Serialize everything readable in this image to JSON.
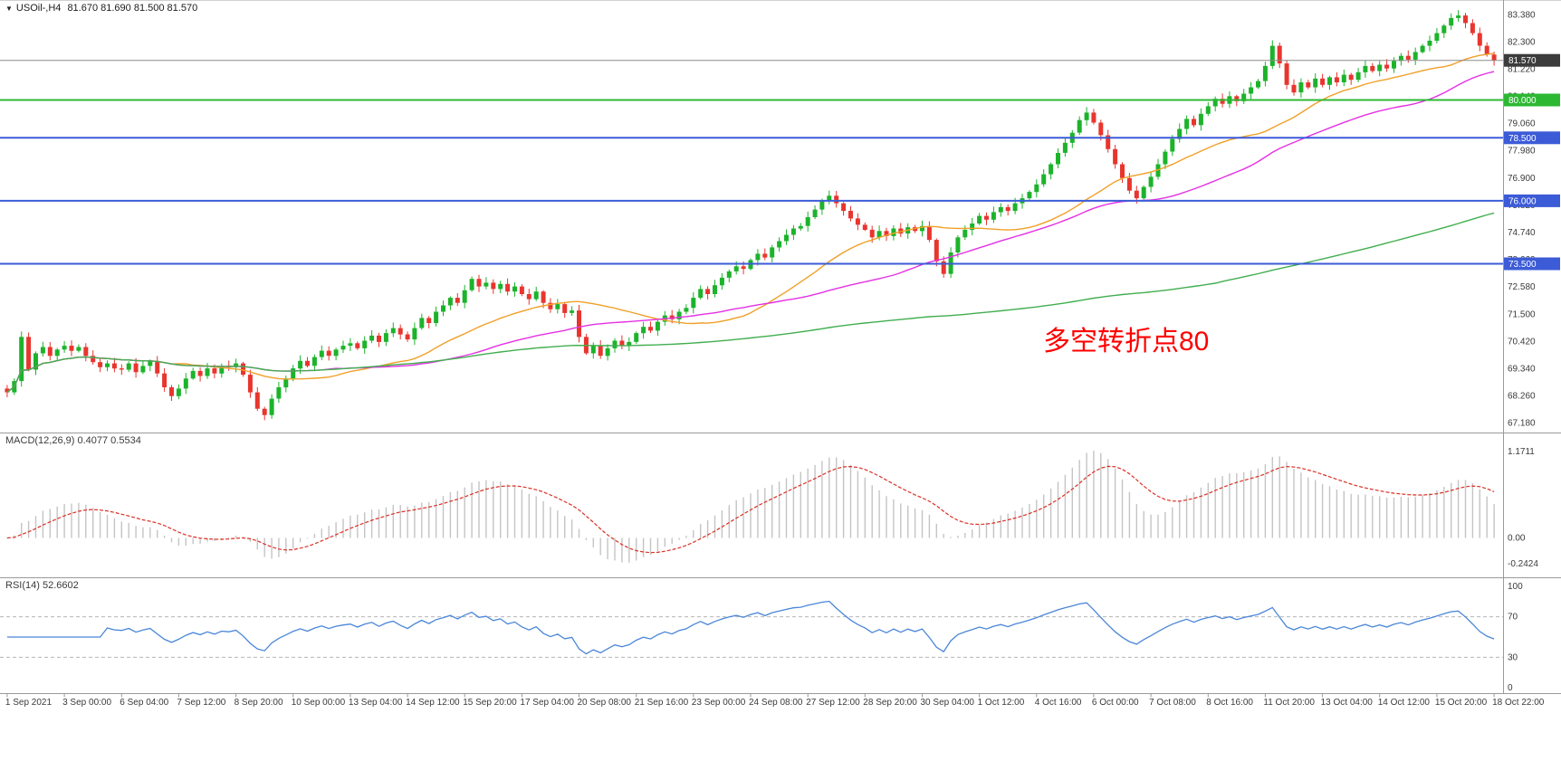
{
  "header": {
    "marker": "▼",
    "symbol_label": "USOil-,H4",
    "ohlc_label": "81.670 81.690 81.500 81.570"
  },
  "macd_panel": {
    "label": "MACD(12,26,9) 0.4077 0.5534",
    "axis_max": "1.1711",
    "axis_zero": "0.00",
    "axis_min": "-0.2424"
  },
  "rsi_panel": {
    "label": "RSI(14) 52.6602",
    "axis_labels": [
      "100",
      "70",
      "30",
      "0"
    ],
    "level_lines": [
      70,
      30
    ]
  },
  "annotation": {
    "text": "多空转折点80",
    "color": "#ff0000"
  },
  "colors": {
    "up": "#1cb32b",
    "down": "#e8352e",
    "ma_fast": "#f0a028",
    "ma_mid": "#e431e4",
    "ma_slow": "#41ae4f",
    "macd_hist": "#c4c4c4",
    "macd_signal": "#d93025",
    "rsi_line": "#4a86d8",
    "level_blue": "#3c5bd7",
    "level_green": "#2db834",
    "bid_badge": "#3c3c3c",
    "axis_text": "#3a3a3a",
    "grid_dash": "#b5b5b5",
    "separator": "#9a9a9a",
    "background": "#ffffff"
  },
  "chart_data": {
    "type": "candlestick",
    "symbol": "USOil",
    "timeframe": "H4",
    "title": "USOil-,H4",
    "current_ohlc": {
      "open": 81.67,
      "high": 81.69,
      "low": 81.5,
      "close": 81.57
    },
    "y_axis": {
      "range": [
        66.95,
        83.75
      ],
      "tick_labels": [
        "83.380",
        "82.300",
        "81.220",
        "80.140",
        "79.060",
        "77.980",
        "76.900",
        "75.820",
        "74.740",
        "73.660",
        "72.580",
        "71.500",
        "70.420",
        "69.340",
        "68.260",
        "67.180"
      ]
    },
    "x_axis": {
      "label_every_n_candles": 8,
      "labels": [
        "1 Sep 2021",
        "3 Sep 00:00",
        "6 Sep 04:00",
        "7 Sep 12:00",
        "8 Sep 20:00",
        "10 Sep 00:00",
        "13 Sep 04:00",
        "14 Sep 12:00",
        "15 Sep 20:00",
        "17 Sep 04:00",
        "20 Sep 08:00",
        "21 Sep 16:00",
        "23 Sep 00:00",
        "24 Sep 08:00",
        "27 Sep 12:00",
        "28 Sep 20:00",
        "30 Sep 04:00",
        "1 Oct 12:00",
        "4 Oct 16:00",
        "6 Oct 00:00",
        "7 Oct 08:00",
        "8 Oct 16:00",
        "11 Oct 20:00",
        "13 Oct 04:00",
        "14 Oct 12:00",
        "15 Oct 20:00",
        "18 Oct 22:00"
      ]
    },
    "first_open": 68.55,
    "closes": [
      68.4,
      68.85,
      70.6,
      69.3,
      69.95,
      70.2,
      69.85,
      70.1,
      70.25,
      70.05,
      70.2,
      69.85,
      69.6,
      69.4,
      69.55,
      69.35,
      69.3,
      69.55,
      69.2,
      69.45,
      69.65,
      69.15,
      68.6,
      68.25,
      68.55,
      68.95,
      69.25,
      69.05,
      69.35,
      69.15,
      69.45,
      69.4,
      69.55,
      69.1,
      68.4,
      67.75,
      67.5,
      68.15,
      68.6,
      68.95,
      69.35,
      69.65,
      69.45,
      69.8,
      70.05,
      69.85,
      70.1,
      70.25,
      70.35,
      70.15,
      70.45,
      70.65,
      70.4,
      70.75,
      70.95,
      70.7,
      70.5,
      70.95,
      71.35,
      71.15,
      71.6,
      71.85,
      72.15,
      71.95,
      72.45,
      72.9,
      72.6,
      72.75,
      72.5,
      72.7,
      72.4,
      72.6,
      72.3,
      72.1,
      72.4,
      71.95,
      71.7,
      71.9,
      71.55,
      71.65,
      70.6,
      69.95,
      70.25,
      69.85,
      70.15,
      70.45,
      70.25,
      70.4,
      70.75,
      71.0,
      70.85,
      71.2,
      71.45,
      71.3,
      71.6,
      71.75,
      72.15,
      72.5,
      72.3,
      72.65,
      72.95,
      73.2,
      73.4,
      73.3,
      73.65,
      73.9,
      73.75,
      74.15,
      74.4,
      74.65,
      74.9,
      75.0,
      75.35,
      75.65,
      76.0,
      76.2,
      75.9,
      75.6,
      75.3,
      75.05,
      74.85,
      74.55,
      74.8,
      74.6,
      74.9,
      74.7,
      74.95,
      74.8,
      75.0,
      74.45,
      73.6,
      73.1,
      73.95,
      74.55,
      74.85,
      75.1,
      75.4,
      75.25,
      75.55,
      75.75,
      75.6,
      75.9,
      76.1,
      76.35,
      76.65,
      77.05,
      77.45,
      77.9,
      78.3,
      78.7,
      79.2,
      79.5,
      79.1,
      78.6,
      78.05,
      77.45,
      76.9,
      76.4,
      76.1,
      76.55,
      76.95,
      77.45,
      77.95,
      78.45,
      78.85,
      79.25,
      79.0,
      79.45,
      79.75,
      80.05,
      79.85,
      80.15,
      79.95,
      80.25,
      80.5,
      80.75,
      81.35,
      82.15,
      81.45,
      80.6,
      80.3,
      80.7,
      80.5,
      80.85,
      80.6,
      80.9,
      80.7,
      81.0,
      80.8,
      81.1,
      81.35,
      81.15,
      81.4,
      81.25,
      81.55,
      81.75,
      81.6,
      81.9,
      82.15,
      82.35,
      82.65,
      82.95,
      83.25,
      83.35,
      83.05,
      82.65,
      82.15,
      81.8,
      81.57
    ],
    "levels": [
      {
        "price": 81.57,
        "label": "81.570",
        "style": "bid"
      },
      {
        "price": 80.0,
        "label": "80.000",
        "style": "green"
      },
      {
        "price": 78.5,
        "label": "78.500",
        "style": "blue"
      },
      {
        "price": 76.0,
        "label": "76.000",
        "style": "blue"
      },
      {
        "price": 73.5,
        "label": "73.500",
        "style": "blue"
      }
    ],
    "moving_averages": [
      {
        "period": 24,
        "color": "#f0a028"
      },
      {
        "period": 45,
        "color": "#e431e4"
      },
      {
        "period": 170,
        "color": "#41ae4f"
      }
    ],
    "indicators": {
      "macd": {
        "fast": 12,
        "slow": 26,
        "signal": 9,
        "current_macd": 0.4077,
        "current_signal": 0.5534
      },
      "rsi": {
        "period": 14,
        "current": 52.6602,
        "range": [
          0,
          100
        ]
      }
    }
  }
}
